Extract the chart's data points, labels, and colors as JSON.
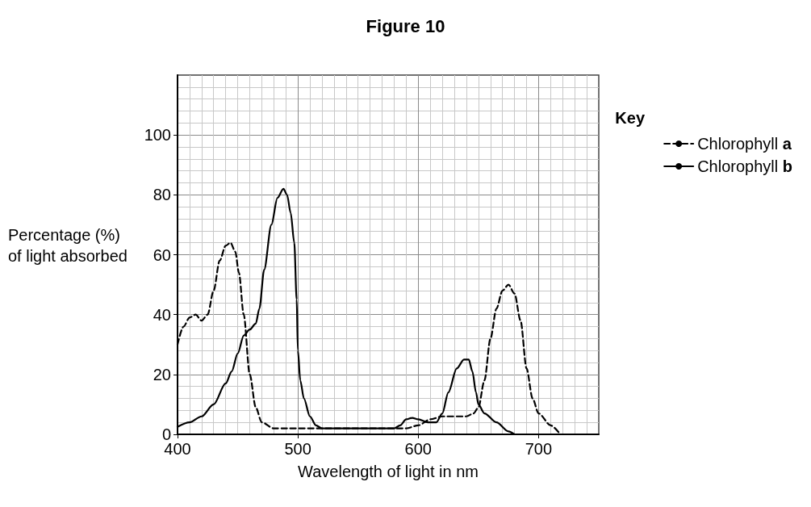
{
  "chart_data": {
    "type": "line",
    "title": "Figure 10",
    "xlabel": "Wavelength of light in nm",
    "ylabel": "Percentage (%) of light absorbed",
    "legend_title": "Key",
    "legend": "right",
    "grid": true,
    "marker": "none",
    "xlim": [
      400,
      750
    ],
    "ylim": [
      0,
      120
    ],
    "xticks": [
      400,
      500,
      600,
      700
    ],
    "yticks": [
      0,
      20,
      40,
      60,
      80,
      100
    ],
    "series": [
      {
        "name": "Chlorophyll a",
        "color": "#000000",
        "line_style": "dashed",
        "x": [
          400,
          405,
          410,
          415,
          420,
          425,
          430,
          435,
          440,
          444,
          448,
          451,
          455,
          460,
          465,
          470,
          480,
          490,
          580,
          590,
          600,
          610,
          620,
          640,
          646,
          650,
          655,
          660,
          665,
          670,
          675,
          680,
          685,
          690,
          695,
          700,
          710,
          718
        ],
        "values": [
          30,
          36,
          39,
          40,
          38,
          40,
          48,
          58,
          63,
          64,
          61,
          54,
          40,
          20,
          9,
          4,
          2,
          2,
          2,
          2,
          3,
          5,
          6,
          6,
          7,
          9,
          18,
          32,
          42,
          48,
          50,
          47,
          38,
          22,
          12,
          7,
          3,
          0
        ]
      },
      {
        "name": "Chlorophyll b",
        "color": "#000000",
        "line_style": "solid",
        "x": [
          400,
          410,
          420,
          430,
          440,
          445,
          450,
          455,
          460,
          465,
          468,
          472,
          478,
          483,
          488,
          491,
          494,
          497,
          499,
          500,
          502,
          505,
          510,
          515,
          520,
          580,
          585,
          590,
          595,
          600,
          608,
          615,
          620,
          625,
          632,
          638,
          642,
          645,
          648,
          650,
          655,
          665,
          675,
          680
        ],
        "values": [
          2.5,
          4,
          6,
          10,
          17,
          21,
          27,
          33,
          35,
          37,
          42,
          55,
          70,
          79,
          82,
          80,
          74,
          64,
          45,
          28,
          18,
          12,
          6,
          3,
          2,
          2,
          3,
          5,
          5.5,
          5,
          4,
          4,
          7,
          14,
          22,
          25,
          25,
          21,
          14,
          10,
          7,
          4,
          1,
          0
        ]
      }
    ]
  }
}
